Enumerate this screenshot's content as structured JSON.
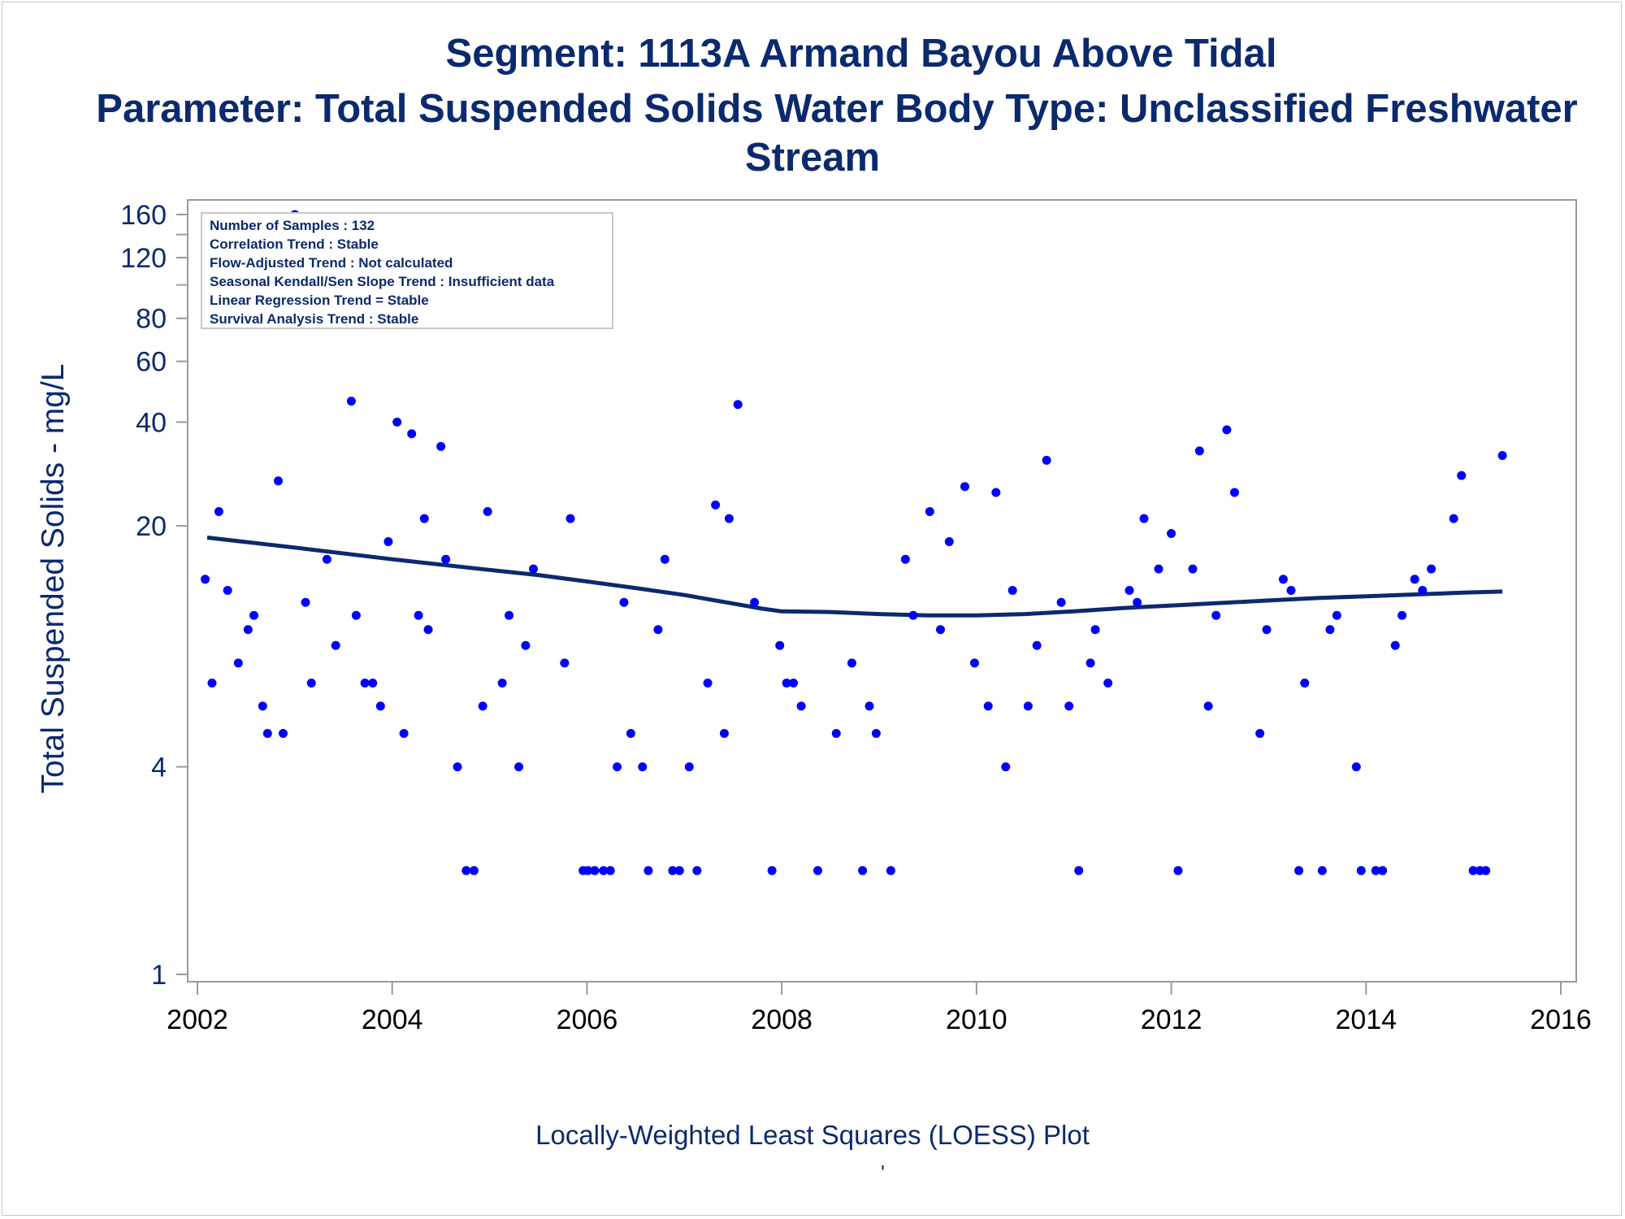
{
  "titles": {
    "line1": "Segment: 1113A  Armand Bayou Above Tidal",
    "line2": "Parameter: Total Suspended Solids   Water Body Type: Unclassified Freshwater",
    "line3": "Stream"
  },
  "footer": {
    "caption": "Locally-Weighted Least Squares (LOESS) Plot",
    "mark": "'"
  },
  "stats_box": [
    "Number of Samples : 132",
    "Correlation Trend : Stable",
    "Flow-Adjusted Trend : Not calculated",
    "Seasonal Kendall/Sen Slope Trend : Insufficient data",
    "Linear Regression Trend = Stable",
    "Survival Analysis Trend : Stable"
  ],
  "colors": {
    "text": "#0b2a6e",
    "points": "#0000ff",
    "loess": "#0b2a6e",
    "axis": "#9a9a9a"
  },
  "chart_data": {
    "type": "scatter",
    "title": "",
    "xlabel": "",
    "ylabel": "Total Suspended Solids - mg/L",
    "xlim": [
      2002,
      2016
    ],
    "ylim": [
      1,
      180
    ],
    "yscale": "log",
    "x_ticks": [
      "2002",
      "2004",
      "2006",
      "2008",
      "2010",
      "2012",
      "2014",
      "2016"
    ],
    "y_ticks": [
      1,
      4,
      20,
      40,
      60,
      80,
      120,
      160
    ],
    "grid": false,
    "series": [
      {
        "type": "scatter",
        "points": [
          [
            2002.08,
            14
          ],
          [
            2002.15,
            7
          ],
          [
            2002.22,
            22
          ],
          [
            2002.31,
            13
          ],
          [
            2002.42,
            8
          ],
          [
            2002.52,
            10
          ],
          [
            2002.58,
            11
          ],
          [
            2002.67,
            6
          ],
          [
            2002.72,
            5
          ],
          [
            2002.88,
            5
          ],
          [
            2002.83,
            27
          ],
          [
            2003.0,
            160
          ],
          [
            2003.11,
            12
          ],
          [
            2003.17,
            7
          ],
          [
            2003.33,
            16
          ],
          [
            2003.42,
            9
          ],
          [
            2003.58,
            46
          ],
          [
            2003.63,
            11
          ],
          [
            2003.72,
            7
          ],
          [
            2003.8,
            7
          ],
          [
            2003.88,
            6
          ],
          [
            2003.96,
            18
          ],
          [
            2004.05,
            40
          ],
          [
            2004.12,
            5
          ],
          [
            2004.2,
            37
          ],
          [
            2004.27,
            11
          ],
          [
            2004.33,
            21
          ],
          [
            2004.37,
            10
          ],
          [
            2004.5,
            34
          ],
          [
            2004.55,
            16
          ],
          [
            2004.67,
            4
          ],
          [
            2004.76,
            2
          ],
          [
            2004.84,
            2
          ],
          [
            2004.93,
            6
          ],
          [
            2004.98,
            22
          ],
          [
            2005.13,
            7
          ],
          [
            2005.2,
            11
          ],
          [
            2005.3,
            4
          ],
          [
            2005.37,
            9
          ],
          [
            2005.45,
            15
          ],
          [
            2005.77,
            8
          ],
          [
            2005.83,
            21
          ],
          [
            2005.96,
            2
          ],
          [
            2006.01,
            2
          ],
          [
            2006.08,
            2
          ],
          [
            2006.17,
            2
          ],
          [
            2006.24,
            2
          ],
          [
            2006.31,
            4
          ],
          [
            2006.38,
            12
          ],
          [
            2006.45,
            5
          ],
          [
            2006.57,
            4
          ],
          [
            2006.63,
            2
          ],
          [
            2006.73,
            10
          ],
          [
            2006.8,
            16
          ],
          [
            2006.88,
            2
          ],
          [
            2006.95,
            2
          ],
          [
            2007.05,
            4
          ],
          [
            2007.13,
            2
          ],
          [
            2007.24,
            7
          ],
          [
            2007.32,
            23
          ],
          [
            2007.41,
            5
          ],
          [
            2007.46,
            21
          ],
          [
            2007.55,
            45
          ],
          [
            2007.72,
            12
          ],
          [
            2007.9,
            2
          ],
          [
            2007.98,
            9
          ],
          [
            2008.05,
            7
          ],
          [
            2008.12,
            7
          ],
          [
            2008.2,
            6
          ],
          [
            2008.37,
            2
          ],
          [
            2008.56,
            5
          ],
          [
            2008.72,
            8
          ],
          [
            2008.83,
            2
          ],
          [
            2008.9,
            6
          ],
          [
            2008.97,
            5
          ],
          [
            2009.12,
            2
          ],
          [
            2009.27,
            16
          ],
          [
            2009.35,
            11
          ],
          [
            2009.52,
            22
          ],
          [
            2009.63,
            10
          ],
          [
            2009.72,
            18
          ],
          [
            2009.88,
            26
          ],
          [
            2009.98,
            8
          ],
          [
            2010.12,
            6
          ],
          [
            2010.2,
            25
          ],
          [
            2010.3,
            4
          ],
          [
            2010.37,
            13
          ],
          [
            2010.53,
            6
          ],
          [
            2010.62,
            9
          ],
          [
            2010.72,
            31
          ],
          [
            2010.87,
            12
          ],
          [
            2010.95,
            6
          ],
          [
            2011.05,
            2
          ],
          [
            2011.17,
            8
          ],
          [
            2011.22,
            10
          ],
          [
            2011.35,
            7
          ],
          [
            2011.57,
            13
          ],
          [
            2011.65,
            12
          ],
          [
            2011.72,
            21
          ],
          [
            2011.87,
            15
          ],
          [
            2012.0,
            19
          ],
          [
            2012.07,
            2
          ],
          [
            2012.22,
            15
          ],
          [
            2012.29,
            33
          ],
          [
            2012.38,
            6
          ],
          [
            2012.46,
            11
          ],
          [
            2012.57,
            38
          ],
          [
            2012.65,
            25
          ],
          [
            2012.91,
            5
          ],
          [
            2012.98,
            10
          ],
          [
            2013.15,
            14
          ],
          [
            2013.23,
            13
          ],
          [
            2013.31,
            2
          ],
          [
            2013.37,
            7
          ],
          [
            2013.55,
            2
          ],
          [
            2013.63,
            10
          ],
          [
            2013.7,
            11
          ],
          [
            2013.9,
            4
          ],
          [
            2013.95,
            2
          ],
          [
            2014.1,
            2
          ],
          [
            2014.17,
            2
          ],
          [
            2014.3,
            9
          ],
          [
            2014.37,
            11
          ],
          [
            2014.5,
            14
          ],
          [
            2014.58,
            13
          ],
          [
            2014.67,
            15
          ],
          [
            2014.9,
            21
          ],
          [
            2014.98,
            28
          ],
          [
            2015.1,
            2
          ],
          [
            2015.17,
            2
          ],
          [
            2015.23,
            2
          ],
          [
            2015.4,
            32
          ]
        ]
      },
      {
        "type": "line",
        "points": [
          [
            2002.1,
            18.5
          ],
          [
            2003.0,
            17.3
          ],
          [
            2004.0,
            16.0
          ],
          [
            2005.0,
            14.9
          ],
          [
            2005.5,
            14.4
          ],
          [
            2006.0,
            13.8
          ],
          [
            2006.5,
            13.2
          ],
          [
            2007.0,
            12.6
          ],
          [
            2007.5,
            11.9
          ],
          [
            2007.8,
            11.5
          ],
          [
            2008.0,
            11.3
          ],
          [
            2008.5,
            11.25
          ],
          [
            2009.0,
            11.1
          ],
          [
            2009.5,
            11.0
          ],
          [
            2010.0,
            11.0
          ],
          [
            2010.5,
            11.1
          ],
          [
            2011.0,
            11.3
          ],
          [
            2011.5,
            11.55
          ],
          [
            2012.0,
            11.75
          ],
          [
            2012.5,
            11.95
          ],
          [
            2013.0,
            12.15
          ],
          [
            2013.5,
            12.35
          ],
          [
            2014.0,
            12.5
          ],
          [
            2014.5,
            12.65
          ],
          [
            2015.0,
            12.8
          ],
          [
            2015.4,
            12.9
          ]
        ]
      }
    ]
  }
}
